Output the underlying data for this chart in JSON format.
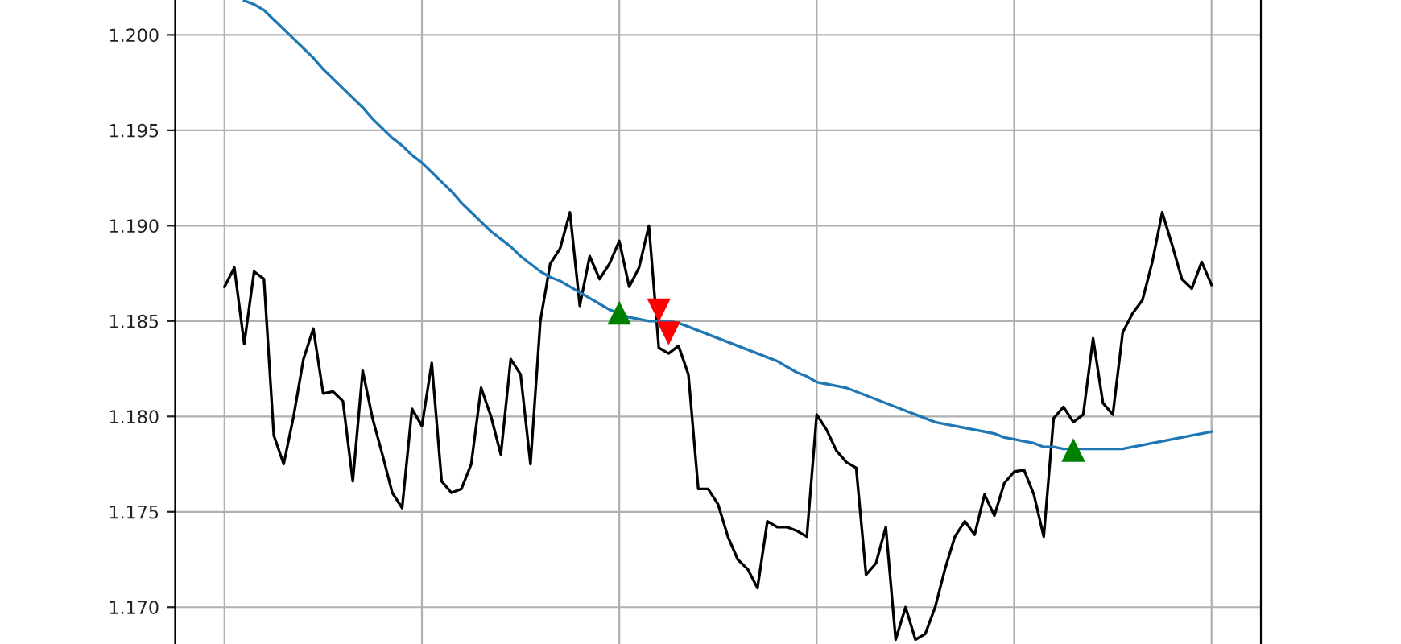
{
  "chart_data": {
    "type": "line",
    "categories": [
      null,
      null,
      null,
      null,
      null,
      null,
      null,
      null,
      null,
      null,
      null,
      null,
      null,
      null,
      null,
      null,
      null,
      null,
      null,
      null,
      null,
      null,
      null,
      null,
      null,
      null,
      null,
      null,
      null,
      null,
      null,
      null,
      null,
      null,
      null,
      null,
      null,
      null,
      null,
      null,
      null,
      null,
      null,
      null,
      null,
      null,
      null,
      null,
      null,
      null,
      null,
      null,
      null,
      null,
      null,
      null,
      null,
      null,
      null,
      null,
      null,
      null,
      null,
      null,
      null,
      null,
      null,
      null,
      null,
      null,
      null,
      null,
      null,
      null,
      null,
      null,
      null,
      null,
      null,
      null,
      null,
      null,
      null,
      null,
      null,
      null,
      null,
      null,
      null,
      null,
      null,
      null,
      null,
      null,
      null,
      null,
      null,
      null,
      null,
      null,
      null
    ],
    "series": [
      {
        "color": "#000000",
        "values": [
          1.1868,
          1.1878,
          1.1838,
          1.1876,
          1.1872,
          1.179,
          1.1775,
          1.18,
          1.183,
          1.1846,
          1.1812,
          1.1813,
          1.1808,
          1.1766,
          1.1824,
          1.1799,
          1.178,
          1.176,
          1.1752,
          1.1804,
          1.1795,
          1.1828,
          1.1766,
          1.176,
          1.1762,
          1.1775,
          1.1815,
          1.18,
          1.178,
          1.183,
          1.1822,
          1.1775,
          1.185,
          1.188,
          1.1888,
          1.1907,
          1.1858,
          1.1884,
          1.1872,
          1.188,
          1.1892,
          1.1868,
          1.1878,
          1.19,
          1.1836,
          1.1833,
          1.1837,
          1.1822,
          1.1762,
          1.1762,
          1.1754,
          1.1737,
          1.1725,
          1.172,
          1.171,
          1.1745,
          1.1742,
          1.1742,
          1.174,
          1.1737,
          1.1801,
          1.1793,
          1.1782,
          1.1776,
          1.1773,
          1.1717,
          1.1723,
          1.1742,
          1.1683,
          1.17,
          1.1683,
          1.1686,
          1.17,
          1.172,
          1.1737,
          1.1745,
          1.1738,
          1.1759,
          1.1748,
          1.1765,
          1.1771,
          1.1772,
          1.1759,
          1.1737,
          1.1799,
          1.1805,
          1.1797,
          1.1801,
          1.1841,
          1.1807,
          1.1801,
          1.1844,
          1.1854,
          1.1861,
          1.1881,
          1.1907,
          1.189,
          1.1872,
          1.1867,
          1.1881,
          1.1869
        ]
      },
      {
        "color": "#1f77b4",
        "values": [
          null,
          null,
          1.2018,
          1.2016,
          1.2013,
          1.2008,
          1.2003,
          1.1998,
          1.1993,
          1.1988,
          1.1982,
          1.1977,
          1.1972,
          1.1967,
          1.1962,
          1.1956,
          1.1951,
          1.1946,
          1.1942,
          1.1937,
          1.1933,
          1.1928,
          1.1923,
          1.1918,
          1.1912,
          1.1907,
          1.1902,
          1.1897,
          1.1893,
          1.1889,
          1.1884,
          1.188,
          1.1876,
          1.1873,
          1.1871,
          1.1868,
          1.1865,
          1.1862,
          1.1859,
          1.1856,
          1.1854,
          1.1852,
          1.1851,
          1.185,
          1.185,
          1.185,
          1.1849,
          1.1847,
          1.1845,
          1.1843,
          1.1841,
          1.1839,
          1.1837,
          1.1835,
          1.1833,
          1.1831,
          1.1829,
          1.1826,
          1.1823,
          1.1821,
          1.1818,
          1.1817,
          1.1816,
          1.1815,
          1.1813,
          1.1811,
          1.1809,
          1.1807,
          1.1805,
          1.1803,
          1.1801,
          1.1799,
          1.1797,
          1.1796,
          1.1795,
          1.1794,
          1.1793,
          1.1792,
          1.1791,
          1.1789,
          1.1788,
          1.1787,
          1.1786,
          1.1784,
          1.1784,
          1.1783,
          1.1783,
          1.1783,
          1.1783,
          1.1783,
          1.1783,
          1.1783,
          1.1784,
          1.1785,
          1.1786,
          1.1787,
          1.1788,
          1.1789,
          1.179,
          1.1791,
          1.1792
        ]
      },
      {
        "type": "scatter",
        "marker": "triangle",
        "color": "#008000",
        "values": [
          null,
          null,
          null,
          null,
          null,
          null,
          null,
          null,
          null,
          null,
          null,
          null,
          null,
          null,
          null,
          null,
          null,
          null,
          null,
          null,
          null,
          null,
          null,
          null,
          null,
          null,
          null,
          null,
          null,
          null,
          null,
          null,
          null,
          null,
          null,
          null,
          null,
          null,
          null,
          null,
          1.1854,
          null,
          null,
          null,
          null,
          null,
          null,
          null,
          null,
          null,
          null,
          null,
          null,
          null,
          null,
          null,
          null,
          null,
          null,
          null,
          null,
          null,
          null,
          null,
          null,
          null,
          null,
          null,
          null,
          null,
          null,
          null,
          null,
          null,
          null,
          null,
          null,
          null,
          null,
          null,
          null,
          null,
          null,
          null,
          null,
          null,
          1.1782,
          null,
          null,
          null,
          null,
          null,
          null,
          null,
          null,
          null,
          null,
          null,
          null,
          null,
          null
        ]
      },
      {
        "type": "scatter",
        "marker": "triangle_down",
        "color": "#ff0000",
        "values": [
          null,
          null,
          null,
          null,
          null,
          null,
          null,
          null,
          null,
          null,
          null,
          null,
          null,
          null,
          null,
          null,
          null,
          null,
          null,
          null,
          null,
          null,
          null,
          null,
          null,
          null,
          null,
          null,
          null,
          null,
          null,
          null,
          null,
          null,
          null,
          null,
          null,
          null,
          null,
          null,
          null,
          null,
          null,
          null,
          1.1856,
          1.1844,
          null,
          null,
          null,
          null,
          null,
          null,
          null,
          null,
          null,
          null,
          null,
          null,
          null,
          null,
          null,
          null,
          null,
          null,
          null,
          null,
          null,
          null,
          null,
          null,
          null,
          null,
          null,
          null,
          null,
          null,
          null,
          null,
          null,
          null,
          null,
          null,
          null,
          null,
          null,
          null,
          null,
          null,
          null,
          null,
          null,
          null,
          null,
          null,
          null,
          null,
          null,
          null,
          null,
          null,
          null
        ]
      }
    ],
    "ylim": [
      1.1679,
      1.202
    ],
    "yticks": [
      {
        "value": 1.17,
        "label": "1.170"
      },
      {
        "value": 1.175,
        "label": "1.175"
      },
      {
        "value": 1.18,
        "label": "1.180"
      },
      {
        "value": 1.185,
        "label": "1.185"
      },
      {
        "value": 1.19,
        "label": "1.190"
      },
      {
        "value": 1.195,
        "label": "1.195"
      },
      {
        "value": 1.2,
        "label": "1.200"
      }
    ],
    "grid": true,
    "tick_labels": "y"
  }
}
